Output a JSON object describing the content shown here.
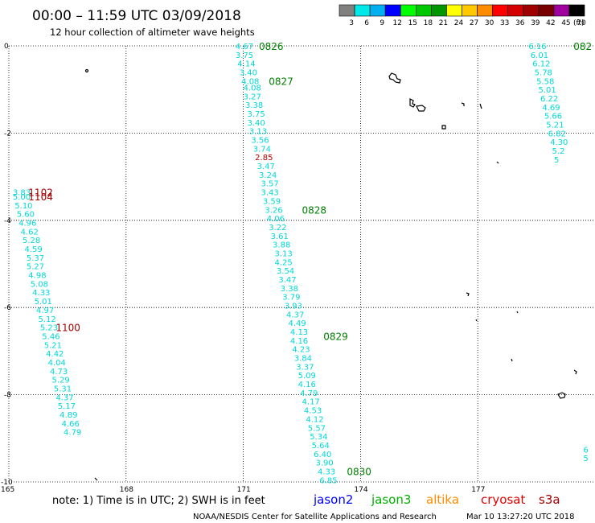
{
  "chart_data": {
    "type": "scatter",
    "title": "00:00 – 11:59 UTC 03/09/2018",
    "subtitle": "12 hour collection of altimeter wave heights",
    "x_ticks": [
      "165",
      "168",
      "171",
      "174",
      "177"
    ],
    "y_ticks": [
      "0",
      "-2",
      "-4",
      "-6",
      "-8",
      "-10"
    ],
    "xlim": [
      165,
      180
    ],
    "ylim": [
      -10,
      0
    ],
    "grid": true,
    "color_scale": {
      "labels": [
        "3",
        "6",
        "9",
        "12",
        "15",
        "18",
        "21",
        "24",
        "27",
        "30",
        "33",
        "36",
        "39",
        "42",
        "45",
        "70"
      ],
      "unit": "(ft)",
      "colors": [
        "#808080",
        "#00e8e8",
        "#00b0f0",
        "#0000ff",
        "#00ff00",
        "#00c800",
        "#009600",
        "#ffff00",
        "#ffc800",
        "#ff8c00",
        "#ff0000",
        "#d20000",
        "#a00000",
        "#780000",
        "#a000a0",
        "#000000"
      ]
    },
    "series": [
      {
        "name": "jason3",
        "color": "#00d8d8",
        "points": [
          {
            "lon": 170.8,
            "lat": -0.0,
            "v": "4.67"
          },
          {
            "lon": 170.8,
            "lat": -0.2,
            "v": "3.75"
          },
          {
            "lon": 170.85,
            "lat": -0.4,
            "v": "4.14"
          },
          {
            "lon": 170.9,
            "lat": -0.6,
            "v": "3.40"
          },
          {
            "lon": 170.95,
            "lat": -0.8,
            "v": "4.08"
          },
          {
            "lon": 171.0,
            "lat": -0.95,
            "v": "4.08"
          },
          {
            "lon": 171.0,
            "lat": -1.15,
            "v": "3.27"
          },
          {
            "lon": 171.05,
            "lat": -1.35,
            "v": "3.38"
          },
          {
            "lon": 171.1,
            "lat": -1.55,
            "v": "3.75"
          },
          {
            "lon": 171.1,
            "lat": -1.75,
            "v": "3.40"
          },
          {
            "lon": 171.15,
            "lat": -1.95,
            "v": "3.13"
          },
          {
            "lon": 171.2,
            "lat": -2.15,
            "v": "3.56"
          },
          {
            "lon": 171.25,
            "lat": -2.35,
            "v": "3.74"
          },
          {
            "lon": 171.35,
            "lat": -2.75,
            "v": "3.47"
          },
          {
            "lon": 171.4,
            "lat": -2.95,
            "v": "3.24"
          },
          {
            "lon": 171.45,
            "lat": -3.15,
            "v": "3.57"
          },
          {
            "lon": 171.45,
            "lat": -3.35,
            "v": "3.43"
          },
          {
            "lon": 171.5,
            "lat": -3.55,
            "v": "3.59"
          },
          {
            "lon": 171.55,
            "lat": -3.75,
            "v": "3.26"
          },
          {
            "lon": 171.6,
            "lat": -3.95,
            "v": "4.06"
          },
          {
            "lon": 171.65,
            "lat": -4.15,
            "v": "3.22"
          },
          {
            "lon": 171.7,
            "lat": -4.35,
            "v": "3.61"
          },
          {
            "lon": 171.75,
            "lat": -4.55,
            "v": "3.88"
          },
          {
            "lon": 171.8,
            "lat": -4.75,
            "v": "3.13"
          },
          {
            "lon": 171.8,
            "lat": -4.95,
            "v": "4.25"
          },
          {
            "lon": 171.85,
            "lat": -5.15,
            "v": "3.54"
          },
          {
            "lon": 171.9,
            "lat": -5.35,
            "v": "3.47"
          },
          {
            "lon": 171.95,
            "lat": -5.55,
            "v": "3.38"
          },
          {
            "lon": 172.0,
            "lat": -5.75,
            "v": "3.79"
          },
          {
            "lon": 172.05,
            "lat": -5.95,
            "v": "3.93"
          },
          {
            "lon": 172.1,
            "lat": -6.15,
            "v": "4.37"
          },
          {
            "lon": 172.15,
            "lat": -6.35,
            "v": "4.49"
          },
          {
            "lon": 172.2,
            "lat": -6.55,
            "v": "4.13"
          },
          {
            "lon": 172.2,
            "lat": -6.75,
            "v": "4.16"
          },
          {
            "lon": 172.25,
            "lat": -6.95,
            "v": "4.23"
          },
          {
            "lon": 172.3,
            "lat": -7.15,
            "v": "3.84"
          },
          {
            "lon": 172.35,
            "lat": -7.35,
            "v": "3.37"
          },
          {
            "lon": 172.4,
            "lat": -7.55,
            "v": "5.09"
          },
          {
            "lon": 172.4,
            "lat": -7.75,
            "v": "4.16"
          },
          {
            "lon": 172.45,
            "lat": -7.95,
            "v": "4.79"
          },
          {
            "lon": 172.5,
            "lat": -8.15,
            "v": "4.17"
          },
          {
            "lon": 172.55,
            "lat": -8.35,
            "v": "4.53"
          },
          {
            "lon": 172.6,
            "lat": -8.55,
            "v": "4.12"
          },
          {
            "lon": 172.65,
            "lat": -8.75,
            "v": "5.57"
          },
          {
            "lon": 172.7,
            "lat": -8.95,
            "v": "5.34"
          },
          {
            "lon": 172.75,
            "lat": -9.15,
            "v": "5.64"
          },
          {
            "lon": 172.8,
            "lat": -9.35,
            "v": "6.40"
          },
          {
            "lon": 172.85,
            "lat": -9.55,
            "v": "3.90"
          },
          {
            "lon": 172.9,
            "lat": -9.75,
            "v": "4.33"
          },
          {
            "lon": 172.95,
            "lat": -9.95,
            "v": "6.85"
          },
          {
            "lon": 165.1,
            "lat": -3.35,
            "v": "3.83"
          },
          {
            "lon": 165.1,
            "lat": -3.45,
            "v": "5.00"
          },
          {
            "lon": 165.15,
            "lat": -3.65,
            "v": "5.10"
          },
          {
            "lon": 165.2,
            "lat": -3.85,
            "v": "5.60"
          },
          {
            "lon": 165.25,
            "lat": -4.05,
            "v": "4.96"
          },
          {
            "lon": 165.3,
            "lat": -4.25,
            "v": "4.62"
          },
          {
            "lon": 165.35,
            "lat": -4.45,
            "v": "5.28"
          },
          {
            "lon": 165.4,
            "lat": -4.65,
            "v": "4.59"
          },
          {
            "lon": 165.45,
            "lat": -4.85,
            "v": "5.37"
          },
          {
            "lon": 165.45,
            "lat": -5.05,
            "v": "5.27"
          },
          {
            "lon": 165.5,
            "lat": -5.25,
            "v": "4.98"
          },
          {
            "lon": 165.55,
            "lat": -5.45,
            "v": "5.08"
          },
          {
            "lon": 165.6,
            "lat": -5.65,
            "v": "4.33"
          },
          {
            "lon": 165.65,
            "lat": -5.85,
            "v": "5.01"
          },
          {
            "lon": 165.7,
            "lat": -6.05,
            "v": "4.97"
          },
          {
            "lon": 165.75,
            "lat": -6.25,
            "v": "5.12"
          },
          {
            "lon": 165.8,
            "lat": -6.45,
            "v": "5.23"
          },
          {
            "lon": 165.85,
            "lat": -6.65,
            "v": "5.46"
          },
          {
            "lon": 165.9,
            "lat": -6.85,
            "v": "5.21"
          },
          {
            "lon": 165.95,
            "lat": -7.05,
            "v": "4.42"
          },
          {
            "lon": 166.0,
            "lat": -7.25,
            "v": "4.04"
          },
          {
            "lon": 166.05,
            "lat": -7.45,
            "v": "4.73"
          },
          {
            "lon": 166.1,
            "lat": -7.65,
            "v": "5.29"
          },
          {
            "lon": 166.15,
            "lat": -7.85,
            "v": "5.31"
          },
          {
            "lon": 166.2,
            "lat": -8.05,
            "v": "4.37"
          },
          {
            "lon": 166.25,
            "lat": -8.25,
            "v": "5.17"
          },
          {
            "lon": 166.3,
            "lat": -8.45,
            "v": "4.89"
          },
          {
            "lon": 166.35,
            "lat": -8.65,
            "v": "4.66"
          },
          {
            "lon": 166.4,
            "lat": -8.85,
            "v": "4.79"
          },
          {
            "lon": 178.3,
            "lat": -0.0,
            "v": "6.16"
          },
          {
            "lon": 178.35,
            "lat": -0.2,
            "v": "6.01"
          },
          {
            "lon": 178.4,
            "lat": -0.4,
            "v": "6.12"
          },
          {
            "lon": 178.45,
            "lat": -0.6,
            "v": "5.78"
          },
          {
            "lon": 178.5,
            "lat": -0.8,
            "v": "5.58"
          },
          {
            "lon": 178.55,
            "lat": -1.0,
            "v": "5.01"
          },
          {
            "lon": 178.6,
            "lat": -1.2,
            "v": "6.22"
          },
          {
            "lon": 178.65,
            "lat": -1.4,
            "v": "4.69"
          },
          {
            "lon": 178.7,
            "lat": -1.6,
            "v": "5.66"
          },
          {
            "lon": 178.75,
            "lat": -1.8,
            "v": "5.21"
          },
          {
            "lon": 178.8,
            "lat": -2.0,
            "v": "6.82"
          },
          {
            "lon": 178.85,
            "lat": -2.2,
            "v": "4.30"
          },
          {
            "lon": 178.9,
            "lat": -2.4,
            "v": "5.2"
          },
          {
            "lon": 178.95,
            "lat": -2.6,
            "v": "5"
          },
          {
            "lon": 179.7,
            "lat": -9.25,
            "v": "6"
          },
          {
            "lon": 179.7,
            "lat": -9.45,
            "v": "5"
          }
        ]
      },
      {
        "name": "cryosat",
        "color": "#b40000",
        "points": [
          {
            "lon": 171.3,
            "lat": -2.55,
            "v": "2.85"
          }
        ]
      }
    ],
    "time_labels": [
      {
        "lon": 171.4,
        "lat": -0.0,
        "text": "0826",
        "color": "#008000"
      },
      {
        "lon": 171.65,
        "lat": -0.8,
        "text": "0827",
        "color": "#008000"
      },
      {
        "lon": 172.5,
        "lat": -3.75,
        "text": "0828",
        "color": "#008000"
      },
      {
        "lon": 173.05,
        "lat": -6.65,
        "text": "0829",
        "color": "#008000"
      },
      {
        "lon": 173.65,
        "lat": -9.75,
        "text": "0830",
        "color": "#008000"
      },
      {
        "lon": 179.45,
        "lat": -0.0,
        "text": "082",
        "color": "#008000"
      },
      {
        "lon": 165.5,
        "lat": -3.35,
        "text": "1102",
        "color": "#a00000"
      },
      {
        "lon": 165.5,
        "lat": -3.45,
        "text": "1104",
        "color": "#a00000"
      },
      {
        "lon": 166.2,
        "lat": -6.45,
        "text": "1100",
        "color": "#a00000"
      }
    ]
  },
  "footer": {
    "note": "note:  1) Time is in UTC;  2) SWH is in feet",
    "satellites": [
      {
        "name": "jason2",
        "color": "#0000ff"
      },
      {
        "name": "jason3",
        "color": "#00b000"
      },
      {
        "name": "altika",
        "color": "#ff8c00"
      },
      {
        "name": "cryosat",
        "color": "#e00000"
      },
      {
        "name": "s3a",
        "color": "#a00000"
      }
    ],
    "credit": "NOAA/NESDIS Center for Satellite Applications and Research",
    "timestamp": "Mar 10 13:27:20 UTC 2018"
  }
}
